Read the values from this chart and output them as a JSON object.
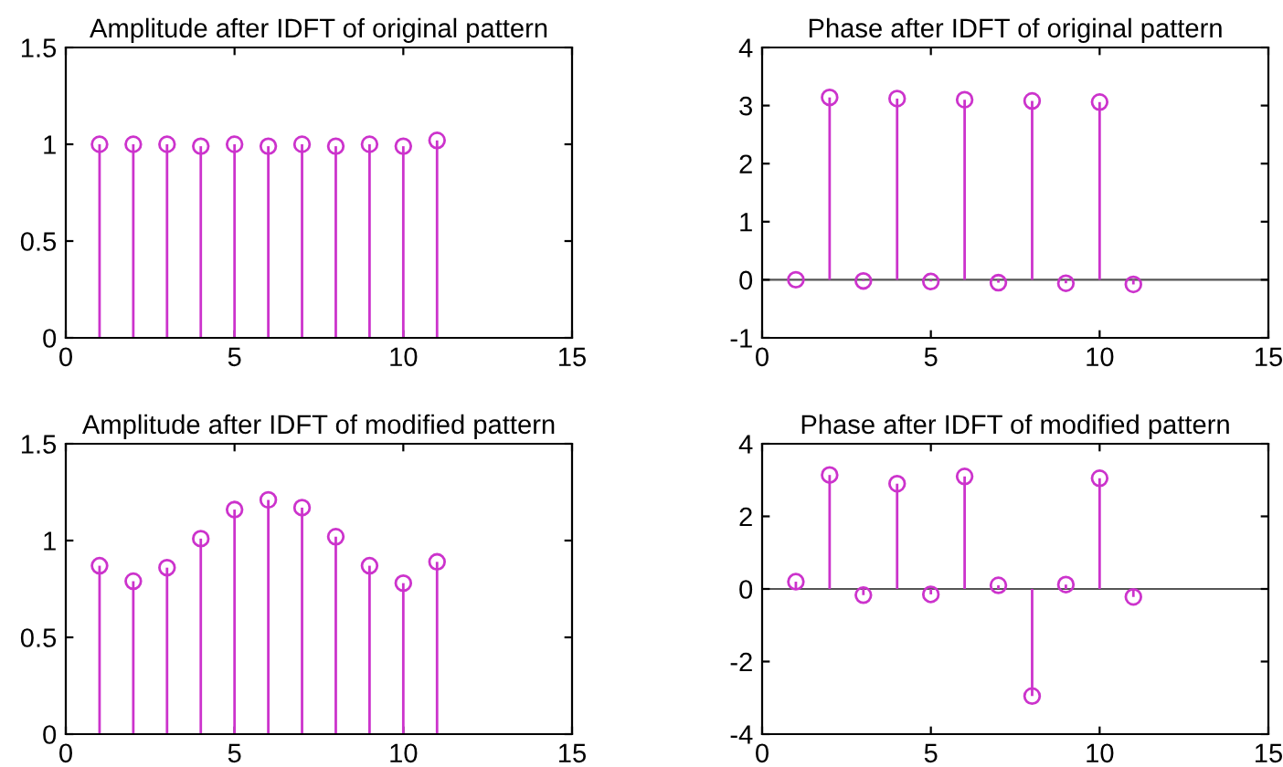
{
  "chart_data": [
    {
      "type": "lollipop",
      "title": "Amplitude after IDFT of original pattern",
      "x": [
        1,
        2,
        3,
        4,
        5,
        6,
        7,
        8,
        9,
        10,
        11
      ],
      "values": [
        1.0,
        1.0,
        1.0,
        0.99,
        1.0,
        0.99,
        1.0,
        0.99,
        1.0,
        0.99,
        1.02
      ],
      "color": "#cc33cc",
      "marker": "circle",
      "xlim": [
        0,
        15
      ],
      "xticks": [
        0,
        5,
        10,
        15
      ],
      "ylim": [
        0,
        1.5
      ],
      "yticks": [
        0,
        0.5,
        1,
        1.5
      ],
      "grid": false
    },
    {
      "type": "lollipop",
      "title": "Phase after IDFT of original pattern",
      "x": [
        1,
        2,
        3,
        4,
        5,
        6,
        7,
        8,
        9,
        10,
        11
      ],
      "values": [
        0.0,
        3.14,
        -0.02,
        3.12,
        -0.03,
        3.1,
        -0.05,
        3.08,
        -0.06,
        3.06,
        -0.08
      ],
      "color": "#cc33cc",
      "marker": "circle",
      "xlim": [
        0,
        15
      ],
      "xticks": [
        0,
        5,
        10,
        15
      ],
      "ylim": [
        -1,
        4
      ],
      "yticks": [
        -1,
        0,
        1,
        2,
        3,
        4
      ],
      "grid": false,
      "ref_lines": [
        {
          "axis": "y",
          "value": 0,
          "color": "#555555"
        }
      ]
    },
    {
      "type": "lollipop",
      "title": "Amplitude after IDFT of modified pattern",
      "x": [
        1,
        2,
        3,
        4,
        5,
        6,
        7,
        8,
        9,
        10,
        11
      ],
      "values": [
        0.87,
        0.79,
        0.86,
        1.01,
        1.16,
        1.21,
        1.17,
        1.02,
        0.87,
        0.78,
        0.89
      ],
      "color": "#cc33cc",
      "marker": "circle",
      "xlim": [
        0,
        15
      ],
      "xticks": [
        0,
        5,
        10,
        15
      ],
      "ylim": [
        0,
        1.5
      ],
      "yticks": [
        0,
        0.5,
        1,
        1.5
      ],
      "grid": false
    },
    {
      "type": "lollipop",
      "title": "Phase after IDFT of modified pattern",
      "x": [
        1,
        2,
        3,
        4,
        5,
        6,
        7,
        8,
        9,
        10,
        11
      ],
      "values": [
        0.2,
        3.14,
        -0.17,
        2.9,
        -0.15,
        3.1,
        0.1,
        -2.95,
        0.12,
        3.05,
        -0.22
      ],
      "color": "#cc33cc",
      "marker": "circle",
      "xlim": [
        0,
        15
      ],
      "xticks": [
        0,
        5,
        10,
        15
      ],
      "ylim": [
        -4,
        4
      ],
      "yticks": [
        -4,
        -2,
        0,
        2,
        4
      ],
      "grid": false,
      "ref_lines": [
        {
          "axis": "y",
          "value": 0,
          "color": "#555555"
        }
      ]
    }
  ]
}
